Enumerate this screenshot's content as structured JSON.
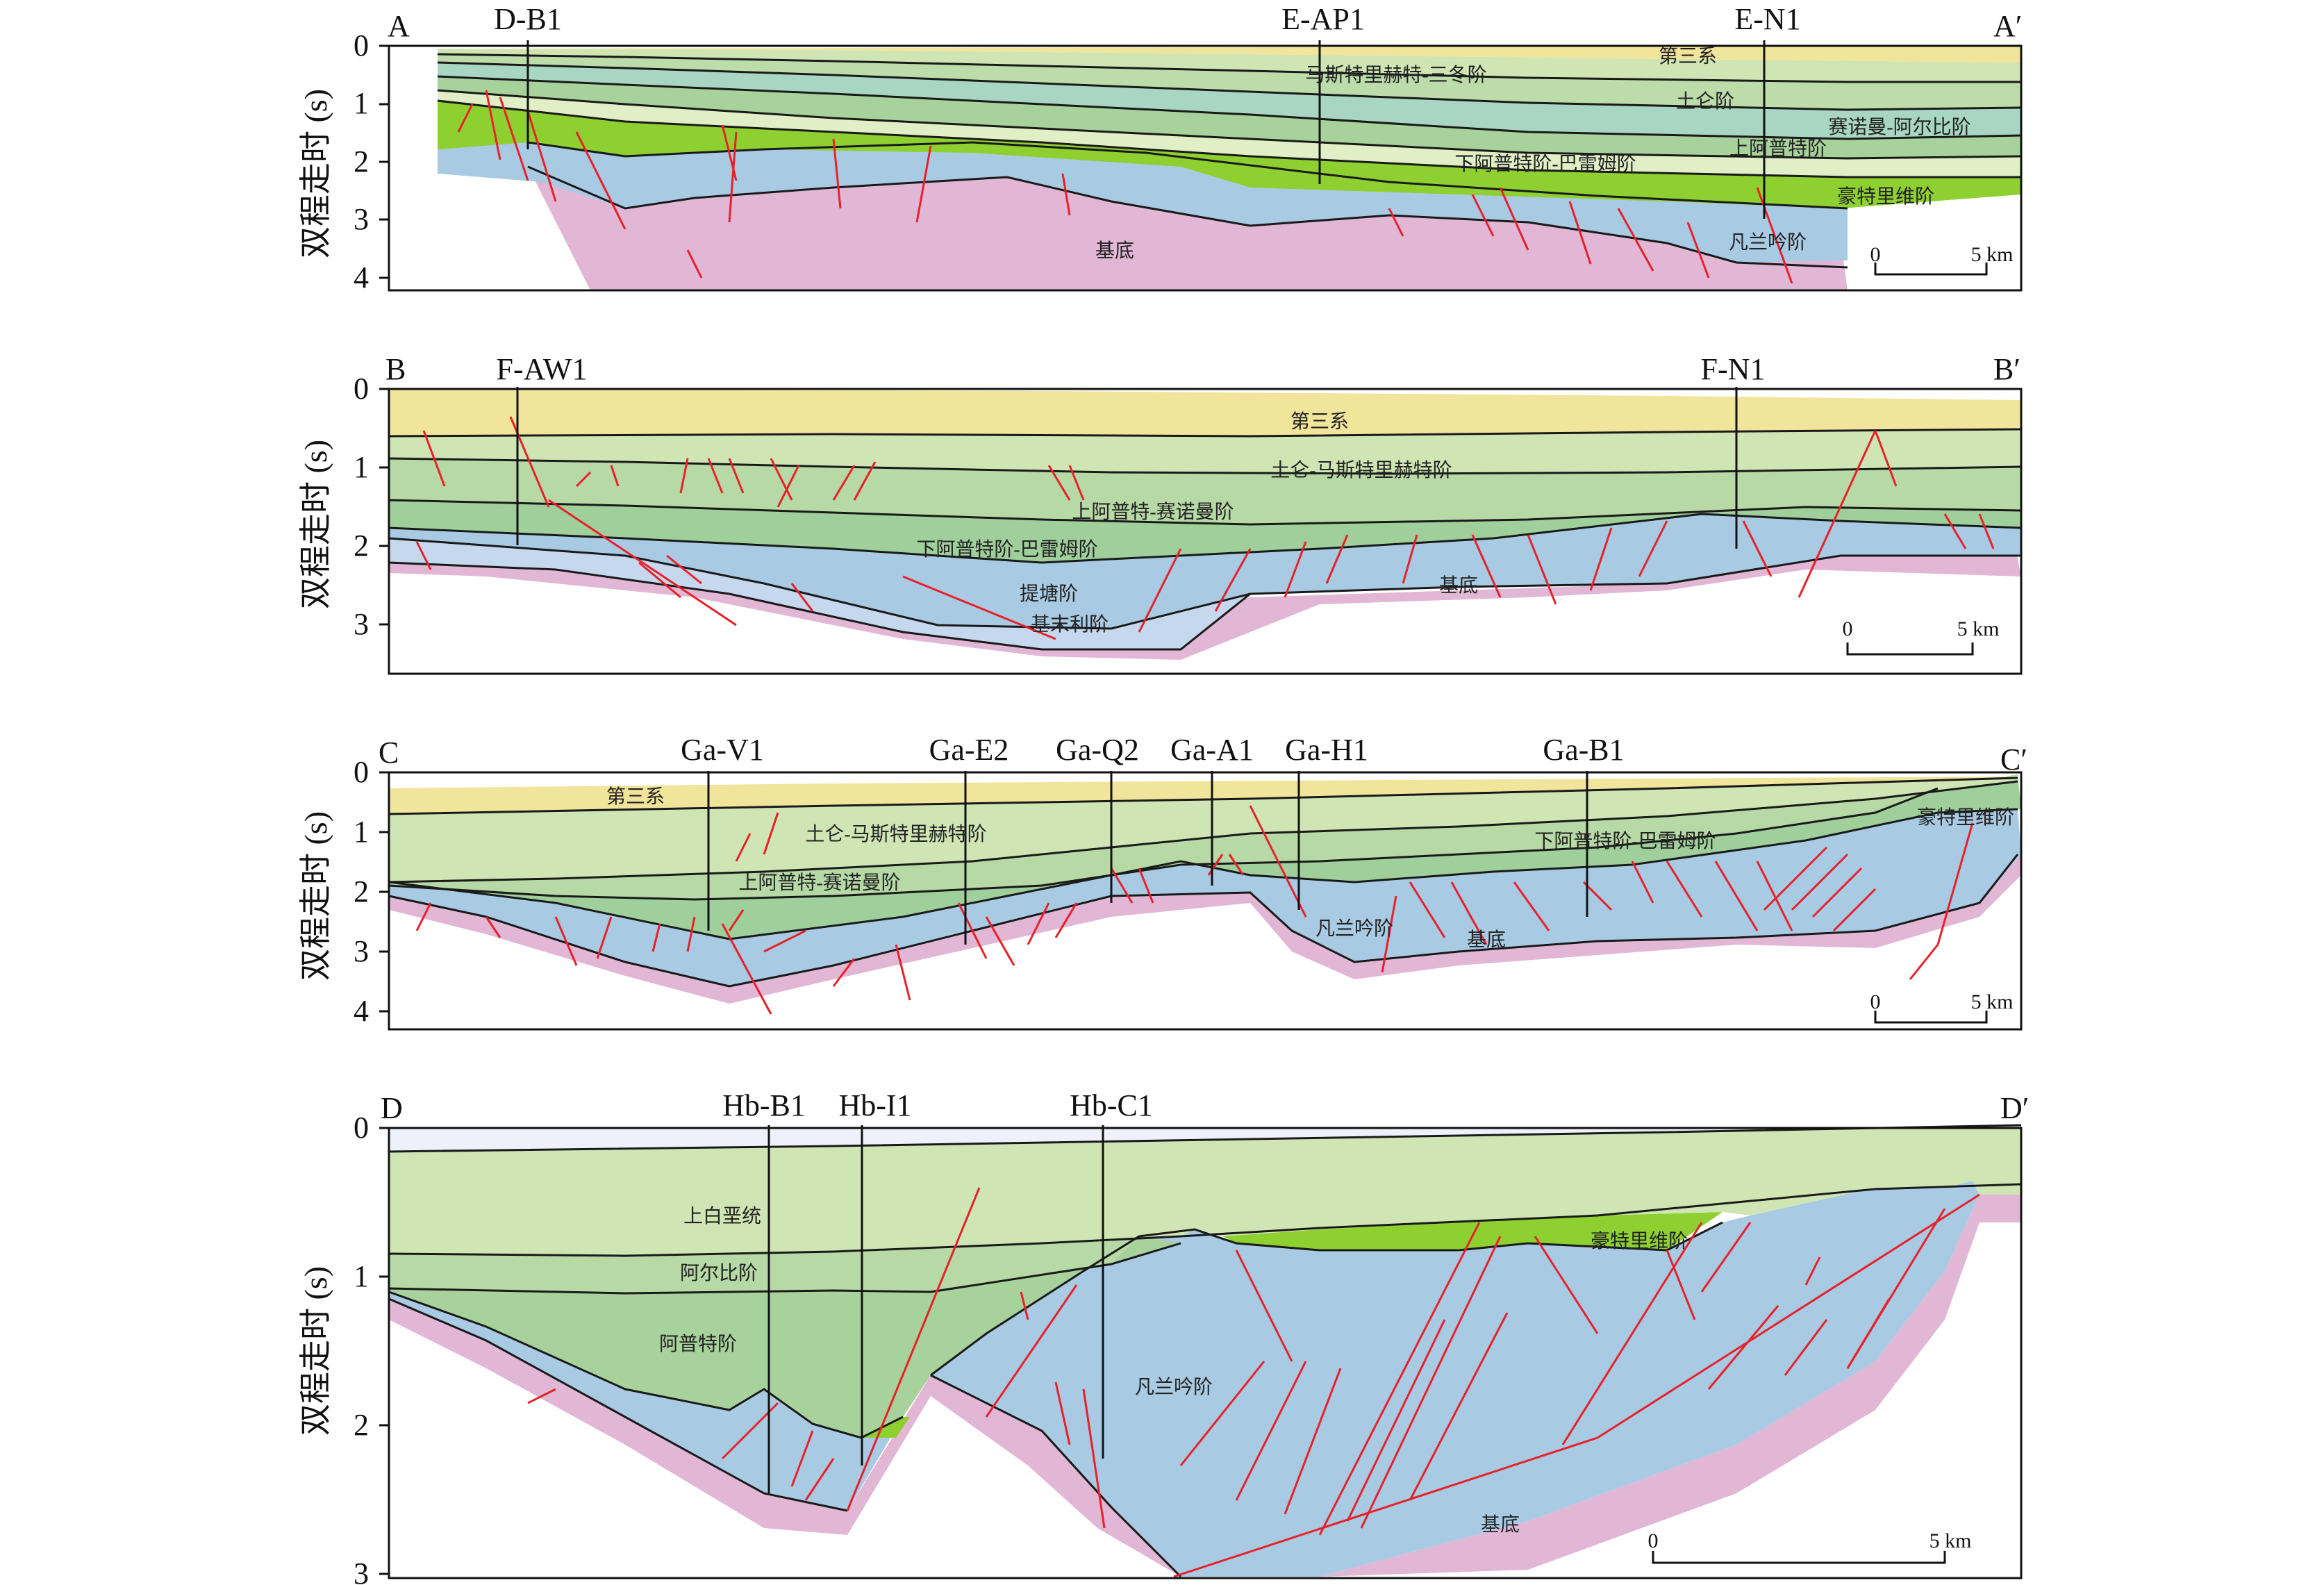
{
  "axis_label": "双程走时 (s)",
  "colors": {
    "tertiary": "#f1e49b",
    "upper_k_light": "#cfe6b4",
    "upper_k_mid": "#bcdcaa",
    "albian": "#a8d29b",
    "aptian_mid": "#9fcf9b",
    "teal": "#a9d6c2",
    "pale": "#e1efc6",
    "hauterivian": "#8fd031",
    "valanginian": "#a8cbe3",
    "basement": "#e2b7d6",
    "fault": "#e8202a",
    "line": "#1a1a1a"
  },
  "sections": [
    {
      "id": "A",
      "left_label": "A",
      "right_label": "A′",
      "ticks": [
        "0",
        "1",
        "2",
        "3",
        "4"
      ],
      "wells": [
        "D-B1",
        "E-AP1",
        "E-N1"
      ],
      "units": [
        "第三系",
        "马斯特里赫特-三冬阶",
        "土仑阶",
        "赛诺曼-阿尔比阶",
        "上阿普特阶",
        "下阿普特阶-巴雷姆阶",
        "豪特里维阶",
        "凡兰吟阶",
        "基底"
      ],
      "scale": {
        "zero": "0",
        "km": "5 km"
      }
    },
    {
      "id": "B",
      "left_label": "B",
      "right_label": "B′",
      "ticks": [
        "0",
        "1",
        "2",
        "3"
      ],
      "wells": [
        "F-AW1",
        "F-N1"
      ],
      "units": [
        "第三系",
        "土仑-马斯特里赫特阶",
        "上阿普特-赛诺曼阶",
        "下阿普特阶-巴雷姆阶",
        "提塘阶",
        "基底",
        "基末利阶"
      ],
      "scale": {
        "zero": "0",
        "km": "5 km"
      }
    },
    {
      "id": "C",
      "left_label": "C",
      "right_label": "C′",
      "ticks": [
        "0",
        "1",
        "2",
        "3",
        "4"
      ],
      "wells": [
        "Ga-V1",
        "Ga-E2",
        "Ga-Q2",
        "Ga-A1",
        "Ga-H1",
        "Ga-B1"
      ],
      "units": [
        "第三系",
        "土仑-马斯特里赫特阶",
        "豪特里维阶",
        "下阿普特阶-巴雷姆阶",
        "上阿普特-赛诺曼阶",
        "凡兰吟阶",
        "基底"
      ],
      "scale": {
        "zero": "0",
        "km": "5 km"
      }
    },
    {
      "id": "D",
      "left_label": "D",
      "right_label": "D′",
      "ticks": [
        "0",
        "1",
        "2",
        "3"
      ],
      "wells": [
        "Hb-B1",
        "Hb-I1",
        "Hb-C1"
      ],
      "units": [
        "上白垩统",
        "阿尔比阶",
        "阿普特阶",
        "豪特里维阶",
        "凡兰吟阶",
        "基底"
      ],
      "scale": {
        "zero": "0",
        "km": "5 km"
      }
    }
  ]
}
